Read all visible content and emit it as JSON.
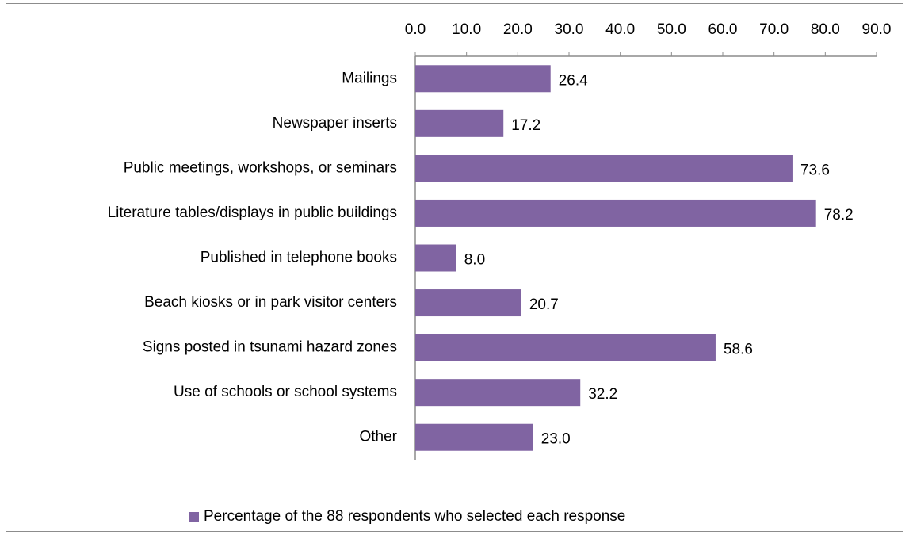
{
  "chart_data": {
    "type": "bar",
    "orientation": "horizontal",
    "categories": [
      "Mailings",
      "Newspaper inserts",
      "Public meetings, workshops, or seminars",
      "Literature tables/displays in public buildings",
      "Published in telephone books",
      "Beach kiosks or in park visitor centers",
      "Signs posted in tsunami hazard zones",
      "Use of schools or school systems",
      "Other"
    ],
    "series": [
      {
        "name": "Percentage of the 88 respondents who selected each response",
        "values": [
          26.4,
          17.2,
          73.6,
          78.2,
          8.0,
          20.7,
          58.6,
          32.2,
          23.0
        ],
        "value_labels": [
          "26.4",
          "17.2",
          "73.6",
          "78.2",
          "8.0",
          "20.7",
          "58.6",
          "32.2",
          "23.0"
        ],
        "color": "#8064a2"
      }
    ],
    "xlim": [
      0,
      90
    ],
    "x_ticks": [
      "0.0",
      "10.0",
      "20.0",
      "30.0",
      "40.0",
      "50.0",
      "60.0",
      "70.0",
      "80.0",
      "90.0"
    ],
    "x_axis_position": "top",
    "grid": false,
    "legend_position": "bottom",
    "title": "",
    "xlabel": "",
    "ylabel": ""
  },
  "colors": {
    "border": "#8c8c8c",
    "axis": "#8c8c8c",
    "text": "#000000"
  }
}
